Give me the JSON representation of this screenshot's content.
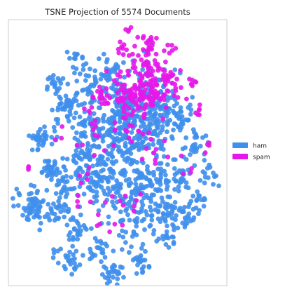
{
  "chart_data": {
    "type": "scatter",
    "title": "TSNE Projection of 5574 Documents",
    "xlabel": "",
    "ylabel": "",
    "xlim": [
      0,
      100
    ],
    "ylim": [
      0,
      100
    ],
    "grid": false,
    "axis_ticks": false,
    "legend_position": "right",
    "series": [
      {
        "name": "ham",
        "color": "#3f8fec",
        "clusters": [
          {
            "x": 60,
            "y": 62,
            "sx": 9,
            "sy": 9,
            "n": 230
          },
          {
            "x": 48,
            "y": 58,
            "sx": 8,
            "sy": 8,
            "n": 120
          },
          {
            "x": 70,
            "y": 66,
            "sx": 5,
            "sy": 6,
            "n": 60
          },
          {
            "x": 44,
            "y": 40,
            "sx": 9,
            "sy": 6,
            "n": 120
          },
          {
            "x": 66,
            "y": 38,
            "sx": 9,
            "sy": 6,
            "n": 110
          },
          {
            "x": 57,
            "y": 24,
            "sx": 7,
            "sy": 5,
            "n": 60
          },
          {
            "x": 34,
            "y": 60,
            "sx": 5,
            "sy": 4,
            "n": 50
          },
          {
            "x": 26,
            "y": 67,
            "sx": 3,
            "sy": 3,
            "n": 35
          },
          {
            "x": 15,
            "y": 55,
            "sx": 2.5,
            "sy": 2.2,
            "n": 35
          },
          {
            "x": 20,
            "y": 44,
            "sx": 2.5,
            "sy": 2.5,
            "n": 30
          },
          {
            "x": 11,
            "y": 30,
            "sx": 3,
            "sy": 3.5,
            "n": 60
          },
          {
            "x": 23,
            "y": 28,
            "sx": 3,
            "sy": 3,
            "n": 28
          },
          {
            "x": 30,
            "y": 22,
            "sx": 3,
            "sy": 3,
            "n": 28
          },
          {
            "x": 29,
            "y": 10,
            "sx": 3,
            "sy": 2,
            "n": 22
          },
          {
            "x": 48,
            "y": 4,
            "sx": 2.8,
            "sy": 2.2,
            "n": 26
          },
          {
            "x": 42,
            "y": 14,
            "sx": 3,
            "sy": 2,
            "n": 22
          },
          {
            "x": 61,
            "y": 10,
            "sx": 3,
            "sy": 2.5,
            "n": 22
          },
          {
            "x": 73,
            "y": 19,
            "sx": 2.5,
            "sy": 2.5,
            "n": 22
          },
          {
            "x": 82,
            "y": 26,
            "sx": 2.5,
            "sy": 2.5,
            "n": 18
          },
          {
            "x": 79,
            "y": 40,
            "sx": 2.5,
            "sy": 2.5,
            "n": 22
          },
          {
            "x": 87,
            "y": 32,
            "sx": 2.5,
            "sy": 2.5,
            "n": 18
          },
          {
            "x": 85,
            "y": 52,
            "sx": 3,
            "sy": 3,
            "n": 25
          },
          {
            "x": 92,
            "y": 42,
            "sx": 2.5,
            "sy": 2.5,
            "n": 16
          },
          {
            "x": 38,
            "y": 75,
            "sx": 4,
            "sy": 3,
            "n": 30
          },
          {
            "x": 47,
            "y": 80,
            "sx": 3.5,
            "sy": 3,
            "n": 24
          },
          {
            "x": 22,
            "y": 76,
            "sx": 2.2,
            "sy": 2,
            "n": 20
          },
          {
            "x": 32,
            "y": 84,
            "sx": 2.5,
            "sy": 2,
            "n": 16
          },
          {
            "x": 80,
            "y": 62,
            "sx": 2.5,
            "sy": 2.5,
            "n": 14
          },
          {
            "x": 36,
            "y": 48,
            "sx": 3,
            "sy": 3,
            "n": 30
          },
          {
            "x": 25,
            "y": 40,
            "sx": 2.5,
            "sy": 2.5,
            "n": 20
          },
          {
            "x": 71,
            "y": 28,
            "sx": 3,
            "sy": 2.5,
            "n": 22
          },
          {
            "x": 52,
            "y": 70,
            "sx": 4,
            "sy": 3,
            "n": 25
          },
          {
            "x": 21,
            "y": 13,
            "sx": 1,
            "sy": 1,
            "n": 5
          }
        ]
      },
      {
        "name": "spam",
        "color": "#e617e9",
        "clusters": [
          {
            "x": 62,
            "y": 73,
            "sx": 8,
            "sy": 4,
            "n": 140
          },
          {
            "x": 64,
            "y": 83,
            "sx": 4,
            "sy": 3.5,
            "n": 45
          },
          {
            "x": 64,
            "y": 92,
            "sx": 2,
            "sy": 2,
            "n": 14
          },
          {
            "x": 51,
            "y": 90,
            "sx": 1.5,
            "sy": 1,
            "n": 7
          },
          {
            "x": 74,
            "y": 88,
            "sx": 1.5,
            "sy": 1.5,
            "n": 7
          },
          {
            "x": 55,
            "y": 96,
            "sx": 1,
            "sy": 1,
            "n": 4
          },
          {
            "x": 74,
            "y": 78,
            "sx": 2,
            "sy": 2,
            "n": 12
          },
          {
            "x": 84,
            "y": 76,
            "sx": 1.5,
            "sy": 1,
            "n": 6
          },
          {
            "x": 88,
            "y": 66,
            "sx": 1.5,
            "sy": 1.5,
            "n": 6
          },
          {
            "x": 44,
            "y": 72,
            "sx": 2.5,
            "sy": 2,
            "n": 12
          },
          {
            "x": 56,
            "y": 60,
            "sx": 5,
            "sy": 4,
            "n": 22
          },
          {
            "x": 40,
            "y": 56,
            "sx": 5,
            "sy": 4,
            "n": 10
          },
          {
            "x": 37,
            "y": 67,
            "sx": 2,
            "sy": 2,
            "n": 6
          },
          {
            "x": 34,
            "y": 42,
            "sx": 3,
            "sy": 3,
            "n": 6
          },
          {
            "x": 55,
            "y": 32,
            "sx": 6,
            "sy": 4,
            "n": 10
          },
          {
            "x": 47,
            "y": 24,
            "sx": 3,
            "sy": 3,
            "n": 6
          },
          {
            "x": 91,
            "y": 52,
            "sx": 1.5,
            "sy": 1.5,
            "n": 4
          },
          {
            "x": 83,
            "y": 42,
            "sx": 1.5,
            "sy": 1.5,
            "n": 3
          },
          {
            "x": 68,
            "y": 47,
            "sx": 4,
            "sy": 3,
            "n": 8
          },
          {
            "x": 9,
            "y": 43,
            "sx": 1,
            "sy": 1,
            "n": 3
          },
          {
            "x": 30,
            "y": 31,
            "sx": 2,
            "sy": 2,
            "n": 3
          },
          {
            "x": 22,
            "y": 59,
            "sx": 2,
            "sy": 2,
            "n": 3
          }
        ]
      }
    ]
  }
}
